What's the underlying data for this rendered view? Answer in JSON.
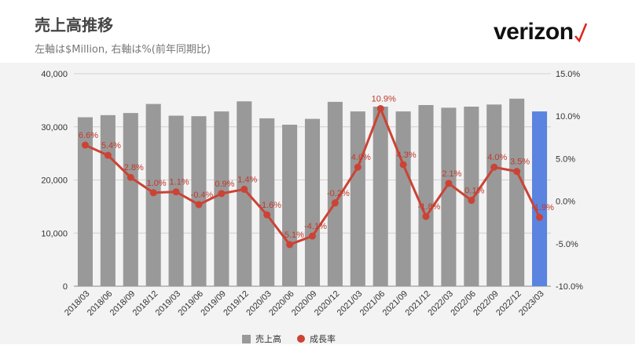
{
  "title": "売上高推移",
  "subtitle": "左軸は$Million, 右軸は%(前年同期比)",
  "logo": {
    "text": "verizon",
    "mark": "check-mark-icon",
    "mark_color": "#e2231a"
  },
  "chart_data": {
    "type": "bar",
    "categories": [
      "2018/03",
      "2018/06",
      "2018/09",
      "2018/12",
      "2019/03",
      "2019/06",
      "2019/09",
      "2019/12",
      "2020/03",
      "2020/06",
      "2020/09",
      "2020/12",
      "2021/03",
      "2021/06",
      "2021/09",
      "2021/12",
      "2022/03",
      "2022/06",
      "2022/09",
      "2022/12",
      "2023/03"
    ],
    "series": [
      {
        "name": "売上高",
        "type": "bar",
        "axis": "left",
        "color": "#999999",
        "highlight_last_color": "#5b84e0",
        "values": [
          31800,
          32200,
          32600,
          34300,
          32100,
          32000,
          32900,
          34800,
          31600,
          30400,
          31500,
          34700,
          32900,
          33800,
          32900,
          34100,
          33600,
          33800,
          34200,
          35300,
          32900
        ]
      },
      {
        "name": "成長率",
        "type": "line",
        "axis": "right",
        "color": "#cb4335",
        "values": [
          6.6,
          5.4,
          2.8,
          1.0,
          1.1,
          -0.4,
          0.9,
          1.4,
          -1.6,
          -5.1,
          -4.1,
          -0.2,
          4.0,
          10.9,
          4.3,
          -1.8,
          2.1,
          0.1,
          4.0,
          3.5,
          -1.9
        ],
        "labels": [
          "6.6%",
          "5.4%",
          "2.8%",
          "1.0%",
          "1.1%",
          "-0.4%",
          "0.9%",
          "1.4%",
          "-1.6%",
          "-5.1%",
          "-4.1%",
          "-0.2%",
          "4.0%",
          "10.9%",
          "4.3%",
          "-1.8%",
          "2.1%",
          "0.1%",
          "4.0%",
          "3.5%",
          "-1.9%"
        ]
      }
    ],
    "left_axis": {
      "ylim": [
        0,
        40000
      ],
      "ticks": [
        "0",
        "10,000",
        "20,000",
        "30,000",
        "40,000"
      ],
      "tick_values": [
        0,
        10000,
        20000,
        30000,
        40000
      ]
    },
    "right_axis": {
      "ylim": [
        -10,
        15
      ],
      "ticks": [
        "-10.0%",
        "-5.0%",
        "0.0%",
        "5.0%",
        "10.0%",
        "15.0%"
      ],
      "tick_values": [
        -10,
        -5,
        0,
        5,
        10,
        15
      ]
    },
    "grid": true,
    "legend": "bottom-center"
  }
}
